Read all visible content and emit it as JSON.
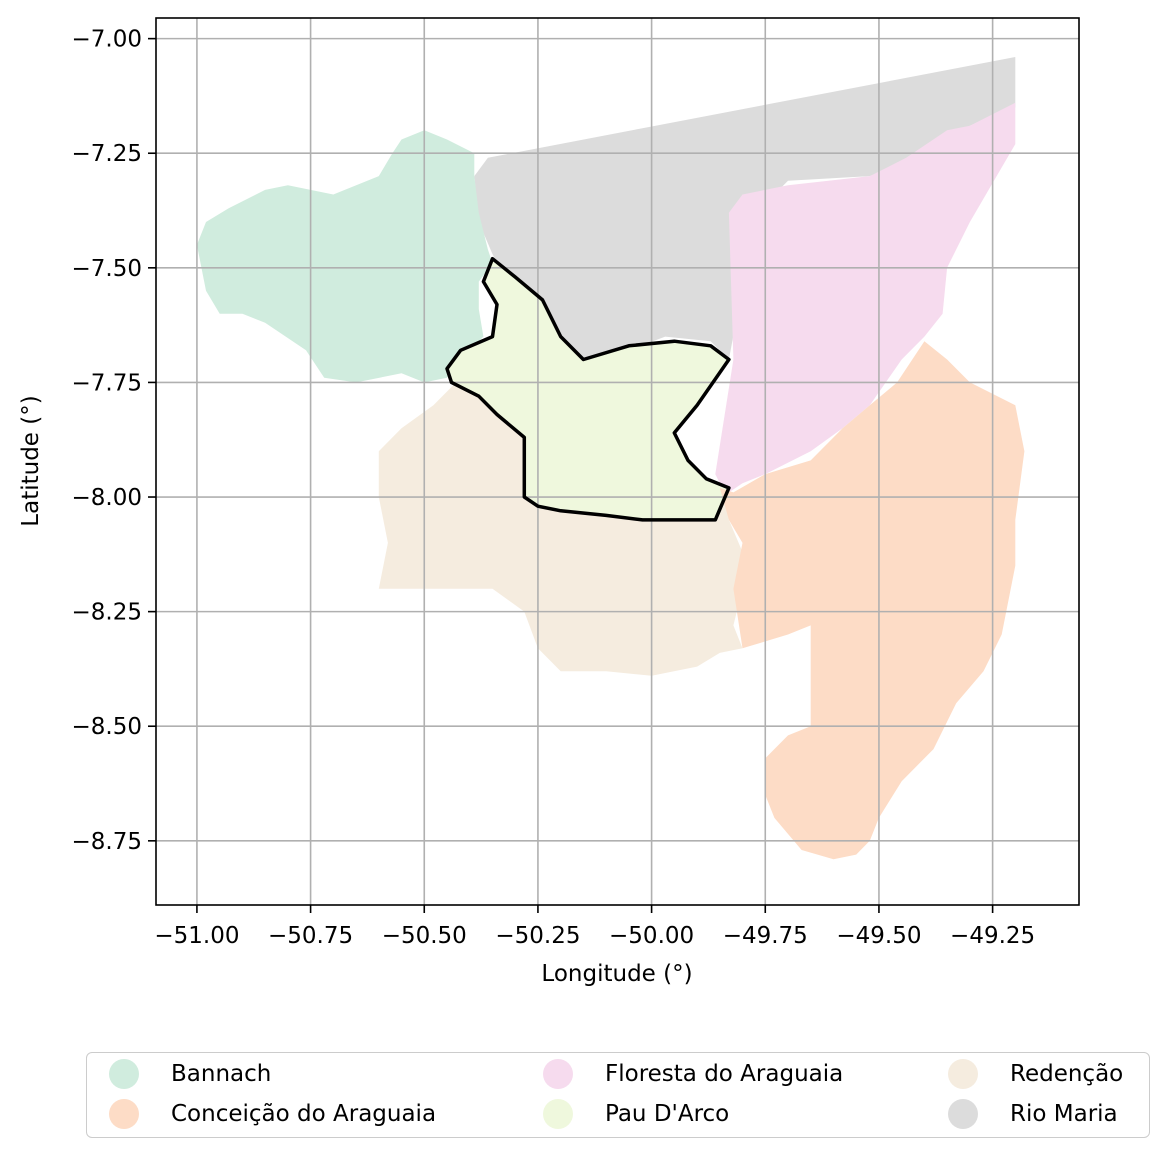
{
  "chart_data": {
    "type": "map",
    "xlabel": "Longitude (°)",
    "ylabel": "Latitude (°)",
    "xlim": [
      -51.09,
      -49.06
    ],
    "ylim": [
      -8.89,
      -6.955
    ],
    "xticks": [
      -51.0,
      -50.75,
      -50.5,
      -50.25,
      -50.0,
      -49.75,
      -49.5,
      -49.25
    ],
    "xtick_labels": [
      "−51.00",
      "−50.75",
      "−50.50",
      "−50.25",
      "−50.00",
      "−49.75",
      "−49.50",
      "−49.25"
    ],
    "yticks": [
      -7.0,
      -7.25,
      -7.5,
      -7.75,
      -8.0,
      -8.25,
      -8.5,
      -8.75
    ],
    "ytick_labels": [
      "−7.00",
      "−7.25",
      "−7.50",
      "−7.75",
      "−8.00",
      "−8.25",
      "−8.50",
      "−8.75"
    ],
    "grid": true,
    "legend_position": "bottom",
    "highlighted_region": "Pau D'Arco",
    "regions": [
      {
        "name": "Rio Maria",
        "color": "#dcdcdc",
        "coords": [
          [
            -50.36,
            -7.26
          ],
          [
            -49.2,
            -7.04
          ],
          [
            -49.2,
            -7.13
          ],
          [
            -49.2,
            -7.15
          ],
          [
            -49.3,
            -7.19
          ],
          [
            -49.42,
            -7.26
          ],
          [
            -49.52,
            -7.3
          ],
          [
            -49.7,
            -7.31
          ],
          [
            -49.77,
            -7.38
          ],
          [
            -49.83,
            -7.7
          ],
          [
            -49.87,
            -7.66
          ],
          [
            -49.97,
            -7.65
          ],
          [
            -50.05,
            -7.68
          ],
          [
            -50.1,
            -7.72
          ],
          [
            -50.16,
            -7.7
          ],
          [
            -50.21,
            -7.63
          ],
          [
            -50.25,
            -7.59
          ],
          [
            -50.31,
            -7.53
          ],
          [
            -50.34,
            -7.49
          ],
          [
            -50.35,
            -7.47
          ],
          [
            -50.38,
            -7.4
          ],
          [
            -50.39,
            -7.3
          ]
        ]
      },
      {
        "name": "Floresta do Araguaia",
        "color": "#f6dbee",
        "coords": [
          [
            -49.83,
            -7.38
          ],
          [
            -49.8,
            -7.34
          ],
          [
            -49.7,
            -7.32
          ],
          [
            -49.52,
            -7.3
          ],
          [
            -49.44,
            -7.26
          ],
          [
            -49.35,
            -7.2
          ],
          [
            -49.3,
            -7.19
          ],
          [
            -49.2,
            -7.14
          ],
          [
            -49.2,
            -7.23
          ],
          [
            -49.3,
            -7.4
          ],
          [
            -49.35,
            -7.5
          ],
          [
            -49.36,
            -7.6
          ],
          [
            -49.4,
            -7.65
          ],
          [
            -49.45,
            -7.7
          ],
          [
            -49.52,
            -7.8
          ],
          [
            -49.58,
            -7.85
          ],
          [
            -49.65,
            -7.9
          ],
          [
            -49.75,
            -7.95
          ],
          [
            -49.8,
            -7.97
          ],
          [
            -49.83,
            -7.99
          ],
          [
            -49.85,
            -7.97
          ],
          [
            -49.86,
            -7.95
          ],
          [
            -49.82,
            -7.7
          ]
        ]
      },
      {
        "name": "Bannach",
        "color": "#d0ecde",
        "coords": [
          [
            -50.57,
            -7.25
          ],
          [
            -50.55,
            -7.22
          ],
          [
            -50.5,
            -7.2
          ],
          [
            -50.45,
            -7.22
          ],
          [
            -50.39,
            -7.25
          ],
          [
            -50.39,
            -7.3
          ],
          [
            -50.38,
            -7.38
          ],
          [
            -50.36,
            -7.46
          ],
          [
            -50.35,
            -7.49
          ],
          [
            -50.38,
            -7.53
          ],
          [
            -50.38,
            -7.59
          ],
          [
            -50.37,
            -7.65
          ],
          [
            -50.42,
            -7.7
          ],
          [
            -50.45,
            -7.74
          ],
          [
            -50.5,
            -7.75
          ],
          [
            -50.55,
            -7.73
          ],
          [
            -50.65,
            -7.75
          ],
          [
            -50.72,
            -7.74
          ],
          [
            -50.76,
            -7.68
          ],
          [
            -50.85,
            -7.62
          ],
          [
            -50.9,
            -7.6
          ],
          [
            -50.95,
            -7.6
          ],
          [
            -50.98,
            -7.55
          ],
          [
            -51.0,
            -7.45
          ],
          [
            -50.98,
            -7.4
          ],
          [
            -50.93,
            -7.37
          ],
          [
            -50.85,
            -7.33
          ],
          [
            -50.8,
            -7.32
          ],
          [
            -50.7,
            -7.34
          ],
          [
            -50.6,
            -7.3
          ]
        ]
      },
      {
        "name": "Redenção",
        "color": "#f5ecdf",
        "coords": [
          [
            -50.45,
            -7.72
          ],
          [
            -50.42,
            -7.74
          ],
          [
            -50.48,
            -7.8
          ],
          [
            -50.55,
            -7.85
          ],
          [
            -50.6,
            -7.9
          ],
          [
            -50.6,
            -8.0
          ],
          [
            -50.58,
            -8.1
          ],
          [
            -50.6,
            -8.2
          ],
          [
            -50.5,
            -8.2
          ],
          [
            -50.35,
            -8.2
          ],
          [
            -50.28,
            -8.25
          ],
          [
            -50.25,
            -8.33
          ],
          [
            -50.2,
            -8.38
          ],
          [
            -50.1,
            -8.38
          ],
          [
            -50.0,
            -8.39
          ],
          [
            -49.9,
            -8.37
          ],
          [
            -49.85,
            -8.34
          ],
          [
            -49.8,
            -8.33
          ],
          [
            -49.82,
            -8.28
          ],
          [
            -49.8,
            -8.2
          ],
          [
            -49.8,
            -8.12
          ],
          [
            -49.83,
            -8.05
          ],
          [
            -49.83,
            -7.99
          ],
          [
            -49.88,
            -8.0
          ],
          [
            -49.95,
            -7.93
          ],
          [
            -50.05,
            -7.88
          ],
          [
            -50.1,
            -7.83
          ],
          [
            -50.2,
            -7.85
          ],
          [
            -50.27,
            -7.88
          ],
          [
            -50.3,
            -7.85
          ],
          [
            -50.35,
            -7.8
          ],
          [
            -50.42,
            -7.75
          ]
        ]
      },
      {
        "name": "Pau D'Arco",
        "color": "#eff8dd",
        "outline": true,
        "coords": [
          [
            -50.35,
            -7.48
          ],
          [
            -50.3,
            -7.52
          ],
          [
            -50.24,
            -7.57
          ],
          [
            -50.2,
            -7.65
          ],
          [
            -50.15,
            -7.7
          ],
          [
            -50.05,
            -7.67
          ],
          [
            -49.95,
            -7.66
          ],
          [
            -49.87,
            -7.67
          ],
          [
            -49.83,
            -7.7
          ],
          [
            -49.9,
            -7.8
          ],
          [
            -49.95,
            -7.86
          ],
          [
            -49.92,
            -7.92
          ],
          [
            -49.88,
            -7.96
          ],
          [
            -49.83,
            -7.98
          ],
          [
            -49.86,
            -8.05
          ],
          [
            -49.9,
            -8.05
          ],
          [
            -49.95,
            -8.05
          ],
          [
            -50.02,
            -8.05
          ],
          [
            -50.1,
            -8.04
          ],
          [
            -50.2,
            -8.03
          ],
          [
            -50.25,
            -8.02
          ],
          [
            -50.28,
            -8.0
          ],
          [
            -50.28,
            -7.87
          ],
          [
            -50.34,
            -7.82
          ],
          [
            -50.38,
            -7.78
          ],
          [
            -50.44,
            -7.75
          ],
          [
            -50.45,
            -7.72
          ],
          [
            -50.42,
            -7.68
          ],
          [
            -50.35,
            -7.65
          ],
          [
            -50.34,
            -7.58
          ],
          [
            -50.37,
            -7.53
          ]
        ]
      },
      {
        "name": "Conceição do Araguaia",
        "color": "#fddcc6",
        "coords": [
          [
            -49.82,
            -7.99
          ],
          [
            -49.75,
            -7.95
          ],
          [
            -49.65,
            -7.92
          ],
          [
            -49.58,
            -7.85
          ],
          [
            -49.52,
            -7.8
          ],
          [
            -49.46,
            -7.75
          ],
          [
            -49.4,
            -7.66
          ],
          [
            -49.35,
            -7.7
          ],
          [
            -49.3,
            -7.75
          ],
          [
            -49.2,
            -7.8
          ],
          [
            -49.18,
            -7.9
          ],
          [
            -49.2,
            -8.05
          ],
          [
            -49.2,
            -8.15
          ],
          [
            -49.23,
            -8.3
          ],
          [
            -49.27,
            -8.38
          ],
          [
            -49.33,
            -8.45
          ],
          [
            -49.38,
            -8.55
          ],
          [
            -49.45,
            -8.62
          ],
          [
            -49.5,
            -8.7
          ],
          [
            -49.52,
            -8.75
          ],
          [
            -49.55,
            -8.78
          ],
          [
            -49.6,
            -8.79
          ],
          [
            -49.67,
            -8.77
          ],
          [
            -49.73,
            -8.7
          ],
          [
            -49.75,
            -8.65
          ],
          [
            -49.75,
            -8.57
          ],
          [
            -49.7,
            -8.52
          ],
          [
            -49.65,
            -8.5
          ],
          [
            -49.65,
            -8.28
          ],
          [
            -49.7,
            -8.3
          ],
          [
            -49.8,
            -8.33
          ],
          [
            -49.82,
            -8.2
          ],
          [
            -49.8,
            -8.1
          ],
          [
            -49.83,
            -8.05
          ],
          [
            -49.85,
            -7.98
          ]
        ]
      }
    ]
  },
  "legend": {
    "items": [
      {
        "label": "Bannach",
        "color": "#d0ecde"
      },
      {
        "label": "Conceição do Araguaia",
        "color": "#fddcc6"
      },
      {
        "label": "Floresta do Araguaia",
        "color": "#f6dbee"
      },
      {
        "label": "Pau D'Arco",
        "color": "#eff8dd"
      },
      {
        "label": "Redenção",
        "color": "#f5ecdf"
      },
      {
        "label": "Rio Maria",
        "color": "#dcdcdc"
      }
    ]
  }
}
